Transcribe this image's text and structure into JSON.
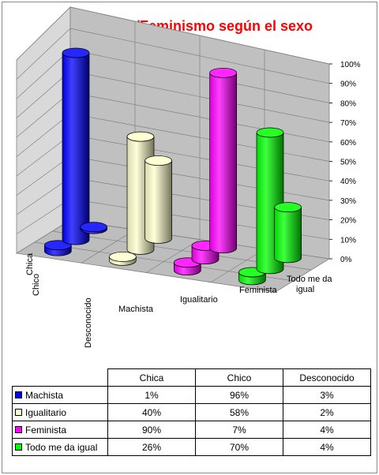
{
  "chart_data": {
    "type": "bar",
    "subtype": "3d-cylinder",
    "title": "Machismo/Feminismo según el sexo",
    "categories": [
      "Machista",
      "Igualitario",
      "Feminista",
      "Todo me da igual"
    ],
    "series": [
      {
        "name": "Chica",
        "values": [
          1,
          40,
          90,
          26
        ]
      },
      {
        "name": "Chico",
        "values": [
          96,
          58,
          7,
          70
        ]
      },
      {
        "name": "Desconocido",
        "values": [
          3,
          2,
          4,
          4
        ]
      }
    ],
    "category_colors": [
      "#0000ff",
      "#ffffcc",
      "#ff00ff",
      "#00ff00"
    ],
    "y_ticks": [
      "0%",
      "10%",
      "20%",
      "30%",
      "40%",
      "50%",
      "60%",
      "70%",
      "80%",
      "90%",
      "100%"
    ],
    "ylim": [
      0,
      100
    ],
    "unit": "%",
    "grid": true
  },
  "table": {
    "headers": [
      "Chica",
      "Chico",
      "Desconocido"
    ],
    "rows": [
      {
        "label": "Machista",
        "color": "#0000ff",
        "values": [
          "1%",
          "96%",
          "3%"
        ]
      },
      {
        "label": "Igualitario",
        "color": "#ffffcc",
        "values": [
          "40%",
          "58%",
          "2%"
        ]
      },
      {
        "label": "Feminista",
        "color": "#ff00ff",
        "values": [
          "90%",
          "7%",
          "4%"
        ]
      },
      {
        "label": "Todo me da igual",
        "color": "#00ff00",
        "values": [
          "26%",
          "70%",
          "4%"
        ]
      }
    ]
  }
}
